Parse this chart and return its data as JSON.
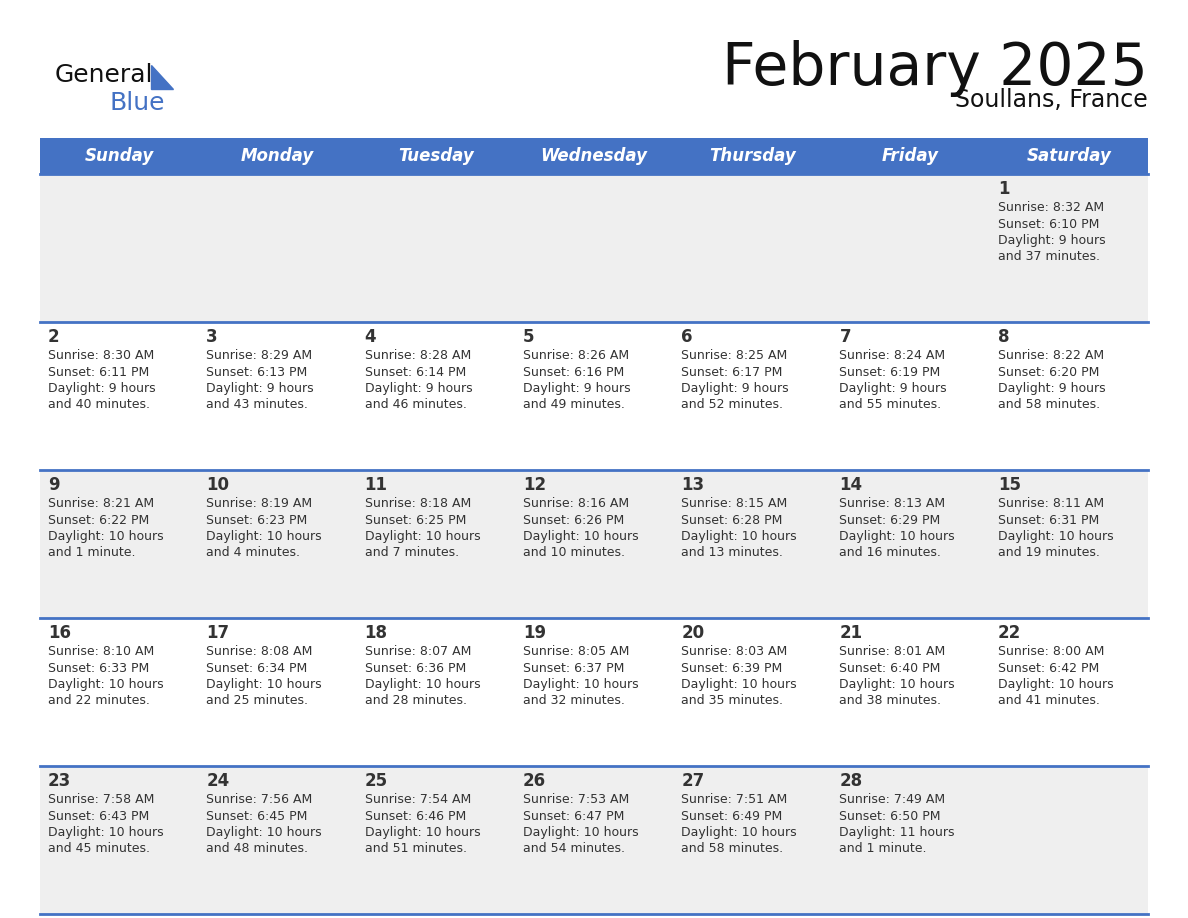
{
  "title": "February 2025",
  "subtitle": "Soullans, France",
  "days_of_week": [
    "Sunday",
    "Monday",
    "Tuesday",
    "Wednesday",
    "Thursday",
    "Friday",
    "Saturday"
  ],
  "header_bg": "#4472C4",
  "header_text_color": "#FFFFFF",
  "row_bg_odd": "#EFEFEF",
  "row_bg_even": "#FFFFFF",
  "separator_color": "#4472C4",
  "text_color": "#333333",
  "title_color": "#111111",
  "calendar_data": [
    [
      {
        "day": "",
        "sunrise": "",
        "sunset": "",
        "daylight": ""
      },
      {
        "day": "",
        "sunrise": "",
        "sunset": "",
        "daylight": ""
      },
      {
        "day": "",
        "sunrise": "",
        "sunset": "",
        "daylight": ""
      },
      {
        "day": "",
        "sunrise": "",
        "sunset": "",
        "daylight": ""
      },
      {
        "day": "",
        "sunrise": "",
        "sunset": "",
        "daylight": ""
      },
      {
        "day": "",
        "sunrise": "",
        "sunset": "",
        "daylight": ""
      },
      {
        "day": "1",
        "sunrise": "8:32 AM",
        "sunset": "6:10 PM",
        "daylight": "9 hours\nand 37 minutes."
      }
    ],
    [
      {
        "day": "2",
        "sunrise": "8:30 AM",
        "sunset": "6:11 PM",
        "daylight": "9 hours\nand 40 minutes."
      },
      {
        "day": "3",
        "sunrise": "8:29 AM",
        "sunset": "6:13 PM",
        "daylight": "9 hours\nand 43 minutes."
      },
      {
        "day": "4",
        "sunrise": "8:28 AM",
        "sunset": "6:14 PM",
        "daylight": "9 hours\nand 46 minutes."
      },
      {
        "day": "5",
        "sunrise": "8:26 AM",
        "sunset": "6:16 PM",
        "daylight": "9 hours\nand 49 minutes."
      },
      {
        "day": "6",
        "sunrise": "8:25 AM",
        "sunset": "6:17 PM",
        "daylight": "9 hours\nand 52 minutes."
      },
      {
        "day": "7",
        "sunrise": "8:24 AM",
        "sunset": "6:19 PM",
        "daylight": "9 hours\nand 55 minutes."
      },
      {
        "day": "8",
        "sunrise": "8:22 AM",
        "sunset": "6:20 PM",
        "daylight": "9 hours\nand 58 minutes."
      }
    ],
    [
      {
        "day": "9",
        "sunrise": "8:21 AM",
        "sunset": "6:22 PM",
        "daylight": "10 hours\nand 1 minute."
      },
      {
        "day": "10",
        "sunrise": "8:19 AM",
        "sunset": "6:23 PM",
        "daylight": "10 hours\nand 4 minutes."
      },
      {
        "day": "11",
        "sunrise": "8:18 AM",
        "sunset": "6:25 PM",
        "daylight": "10 hours\nand 7 minutes."
      },
      {
        "day": "12",
        "sunrise": "8:16 AM",
        "sunset": "6:26 PM",
        "daylight": "10 hours\nand 10 minutes."
      },
      {
        "day": "13",
        "sunrise": "8:15 AM",
        "sunset": "6:28 PM",
        "daylight": "10 hours\nand 13 minutes."
      },
      {
        "day": "14",
        "sunrise": "8:13 AM",
        "sunset": "6:29 PM",
        "daylight": "10 hours\nand 16 minutes."
      },
      {
        "day": "15",
        "sunrise": "8:11 AM",
        "sunset": "6:31 PM",
        "daylight": "10 hours\nand 19 minutes."
      }
    ],
    [
      {
        "day": "16",
        "sunrise": "8:10 AM",
        "sunset": "6:33 PM",
        "daylight": "10 hours\nand 22 minutes."
      },
      {
        "day": "17",
        "sunrise": "8:08 AM",
        "sunset": "6:34 PM",
        "daylight": "10 hours\nand 25 minutes."
      },
      {
        "day": "18",
        "sunrise": "8:07 AM",
        "sunset": "6:36 PM",
        "daylight": "10 hours\nand 28 minutes."
      },
      {
        "day": "19",
        "sunrise": "8:05 AM",
        "sunset": "6:37 PM",
        "daylight": "10 hours\nand 32 minutes."
      },
      {
        "day": "20",
        "sunrise": "8:03 AM",
        "sunset": "6:39 PM",
        "daylight": "10 hours\nand 35 minutes."
      },
      {
        "day": "21",
        "sunrise": "8:01 AM",
        "sunset": "6:40 PM",
        "daylight": "10 hours\nand 38 minutes."
      },
      {
        "day": "22",
        "sunrise": "8:00 AM",
        "sunset": "6:42 PM",
        "daylight": "10 hours\nand 41 minutes."
      }
    ],
    [
      {
        "day": "23",
        "sunrise": "7:58 AM",
        "sunset": "6:43 PM",
        "daylight": "10 hours\nand 45 minutes."
      },
      {
        "day": "24",
        "sunrise": "7:56 AM",
        "sunset": "6:45 PM",
        "daylight": "10 hours\nand 48 minutes."
      },
      {
        "day": "25",
        "sunrise": "7:54 AM",
        "sunset": "6:46 PM",
        "daylight": "10 hours\nand 51 minutes."
      },
      {
        "day": "26",
        "sunrise": "7:53 AM",
        "sunset": "6:47 PM",
        "daylight": "10 hours\nand 54 minutes."
      },
      {
        "day": "27",
        "sunrise": "7:51 AM",
        "sunset": "6:49 PM",
        "daylight": "10 hours\nand 58 minutes."
      },
      {
        "day": "28",
        "sunrise": "7:49 AM",
        "sunset": "6:50 PM",
        "daylight": "11 hours\nand 1 minute."
      },
      {
        "day": "",
        "sunrise": "",
        "sunset": "",
        "daylight": ""
      }
    ]
  ]
}
